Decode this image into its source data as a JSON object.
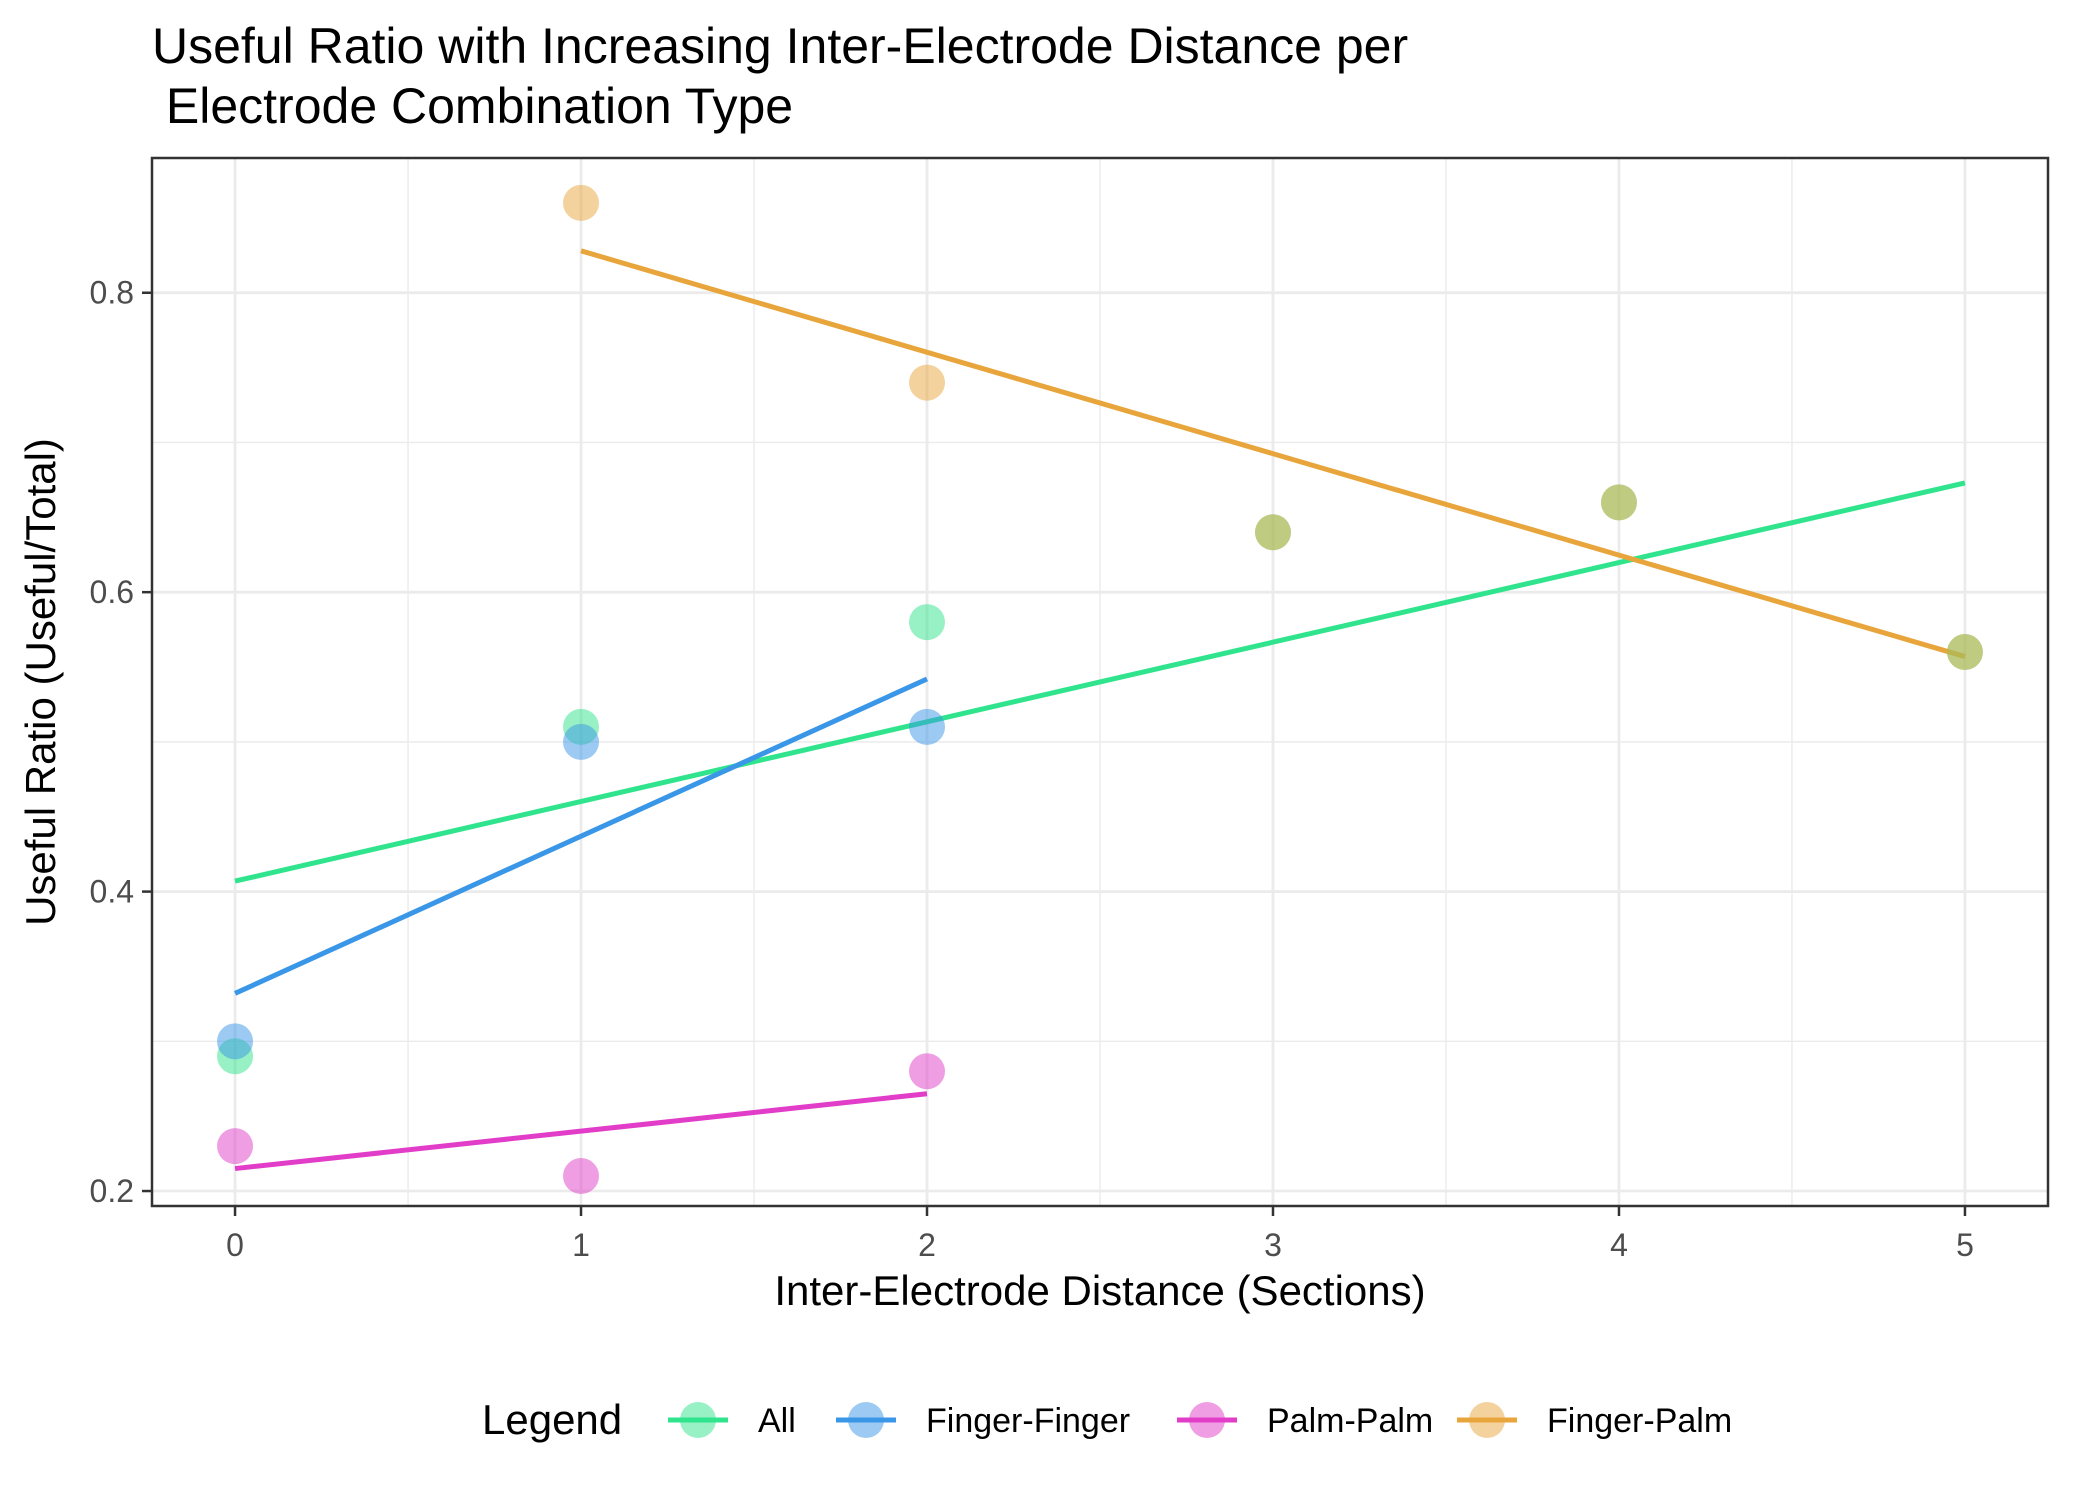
{
  "chart_data": {
    "type": "scatter",
    "title": "Useful Ratio with Increasing Inter-Electrode Distance per\n Electrode Combination Type",
    "xlabel": "Inter-Electrode Distance (Sections)",
    "ylabel": "Useful Ratio (Useful/Total)",
    "xlim": [
      -0.24,
      5.24
    ],
    "ylim": [
      0.19,
      0.89
    ],
    "x_ticks": [
      0,
      1,
      2,
      3,
      4,
      5
    ],
    "y_ticks": [
      0.2,
      0.4,
      0.6,
      0.8
    ],
    "x_tick_labels": [
      "0",
      "1",
      "2",
      "3",
      "4",
      "5"
    ],
    "y_tick_labels": [
      "0.2",
      "0.4",
      "0.6",
      "0.8"
    ],
    "grid": true,
    "legend_title": "Legend",
    "legend_position": "bottom",
    "series": [
      {
        "name": "All",
        "color": "#2fe48c",
        "points": [
          {
            "x": 0,
            "y": 0.29
          },
          {
            "x": 1,
            "y": 0.51
          },
          {
            "x": 2,
            "y": 0.58
          },
          {
            "x": 3,
            "y": 0.64
          },
          {
            "x": 4,
            "y": 0.66
          },
          {
            "x": 5,
            "y": 0.56
          }
        ],
        "fit": {
          "x": [
            0,
            5
          ],
          "y": [
            0.407,
            0.673
          ]
        }
      },
      {
        "name": "Finger-Finger",
        "color": "#3a96e6",
        "points": [
          {
            "x": 0,
            "y": 0.3
          },
          {
            "x": 1,
            "y": 0.5
          },
          {
            "x": 2,
            "y": 0.51
          }
        ],
        "fit": {
          "x": [
            0,
            2
          ],
          "y": [
            0.332,
            0.542
          ]
        }
      },
      {
        "name": "Palm-Palm",
        "color": "#e23dc8",
        "points": [
          {
            "x": 0,
            "y": 0.23
          },
          {
            "x": 1,
            "y": 0.21
          },
          {
            "x": 2,
            "y": 0.28
          }
        ],
        "fit": {
          "x": [
            0,
            2
          ],
          "y": [
            0.215,
            0.265
          ]
        }
      },
      {
        "name": "Finger-Palm",
        "color": "#e8a53c",
        "points": [
          {
            "x": 1,
            "y": 0.86
          },
          {
            "x": 2,
            "y": 0.74
          },
          {
            "x": 3,
            "y": 0.64
          },
          {
            "x": 4,
            "y": 0.66
          },
          {
            "x": 5,
            "y": 0.56
          }
        ],
        "fit": {
          "x": [
            1,
            5
          ],
          "y": [
            0.828,
            0.557
          ]
        }
      }
    ]
  }
}
